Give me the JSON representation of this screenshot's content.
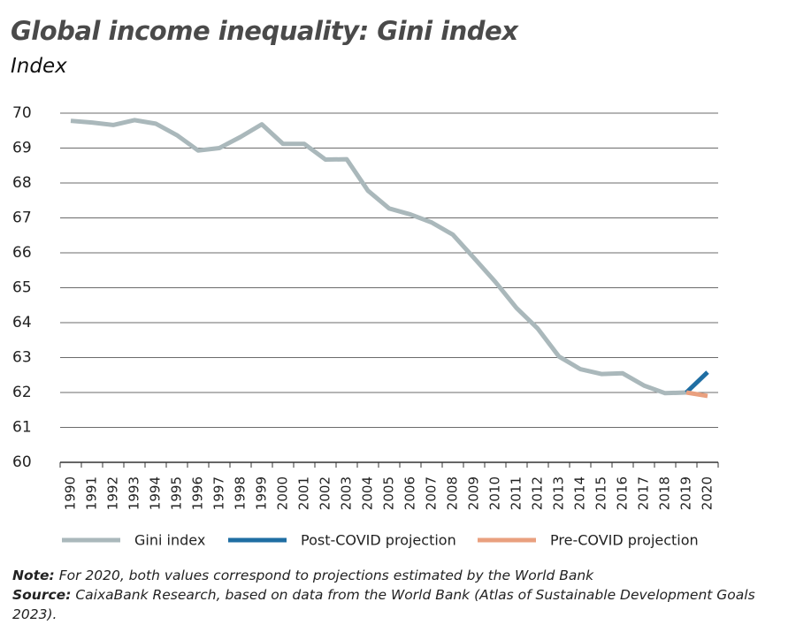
{
  "chart_data": {
    "type": "line",
    "title": "Global income inequality: Gini index",
    "subtitle": "Index",
    "categories": [
      "1990",
      "1991",
      "1992",
      "1993",
      "1994",
      "1995",
      "1996",
      "1997",
      "1998",
      "1999",
      "2000",
      "2001",
      "2002",
      "2003",
      "2004",
      "2005",
      "2006",
      "2007",
      "2008",
      "2009",
      "2010",
      "2011",
      "2012",
      "2013",
      "2014",
      "2015",
      "2016",
      "2017",
      "2018",
      "2019",
      "2020"
    ],
    "series": [
      {
        "name": "Gini index",
        "color": "#aab8bb",
        "values": [
          69.78,
          69.73,
          69.66,
          69.8,
          69.7,
          69.37,
          68.93,
          69.0,
          69.32,
          69.68,
          69.12,
          69.12,
          68.67,
          68.68,
          67.78,
          67.27,
          67.1,
          66.87,
          66.52,
          65.85,
          65.17,
          64.42,
          63.83,
          63.03,
          62.67,
          62.53,
          62.55,
          62.2,
          61.98,
          62.0,
          null
        ]
      },
      {
        "name": "Post-COVID projection",
        "color": "#1f6ea3",
        "values": [
          null,
          null,
          null,
          null,
          null,
          null,
          null,
          null,
          null,
          null,
          null,
          null,
          null,
          null,
          null,
          null,
          null,
          null,
          null,
          null,
          null,
          null,
          null,
          null,
          null,
          null,
          null,
          null,
          null,
          62.0,
          62.58
        ]
      },
      {
        "name": "Pre-COVID projection",
        "color": "#e9a07f",
        "values": [
          null,
          null,
          null,
          null,
          null,
          null,
          null,
          null,
          null,
          null,
          null,
          null,
          null,
          null,
          null,
          null,
          null,
          null,
          null,
          null,
          null,
          null,
          null,
          null,
          null,
          null,
          null,
          null,
          null,
          62.0,
          61.9
        ]
      }
    ],
    "ylim": [
      60,
      70
    ],
    "yticks": [
      60,
      61,
      62,
      63,
      64,
      65,
      66,
      67,
      68,
      69,
      70
    ],
    "grid": true,
    "note_label": "Note:",
    "note_text": "For 2020, both values correspond to projections estimated by the World Bank",
    "source_label": "Source:",
    "source_text": "CaixaBank Research, based on data from the World Bank (Atlas of Sustainable Development Goals 2023)."
  }
}
